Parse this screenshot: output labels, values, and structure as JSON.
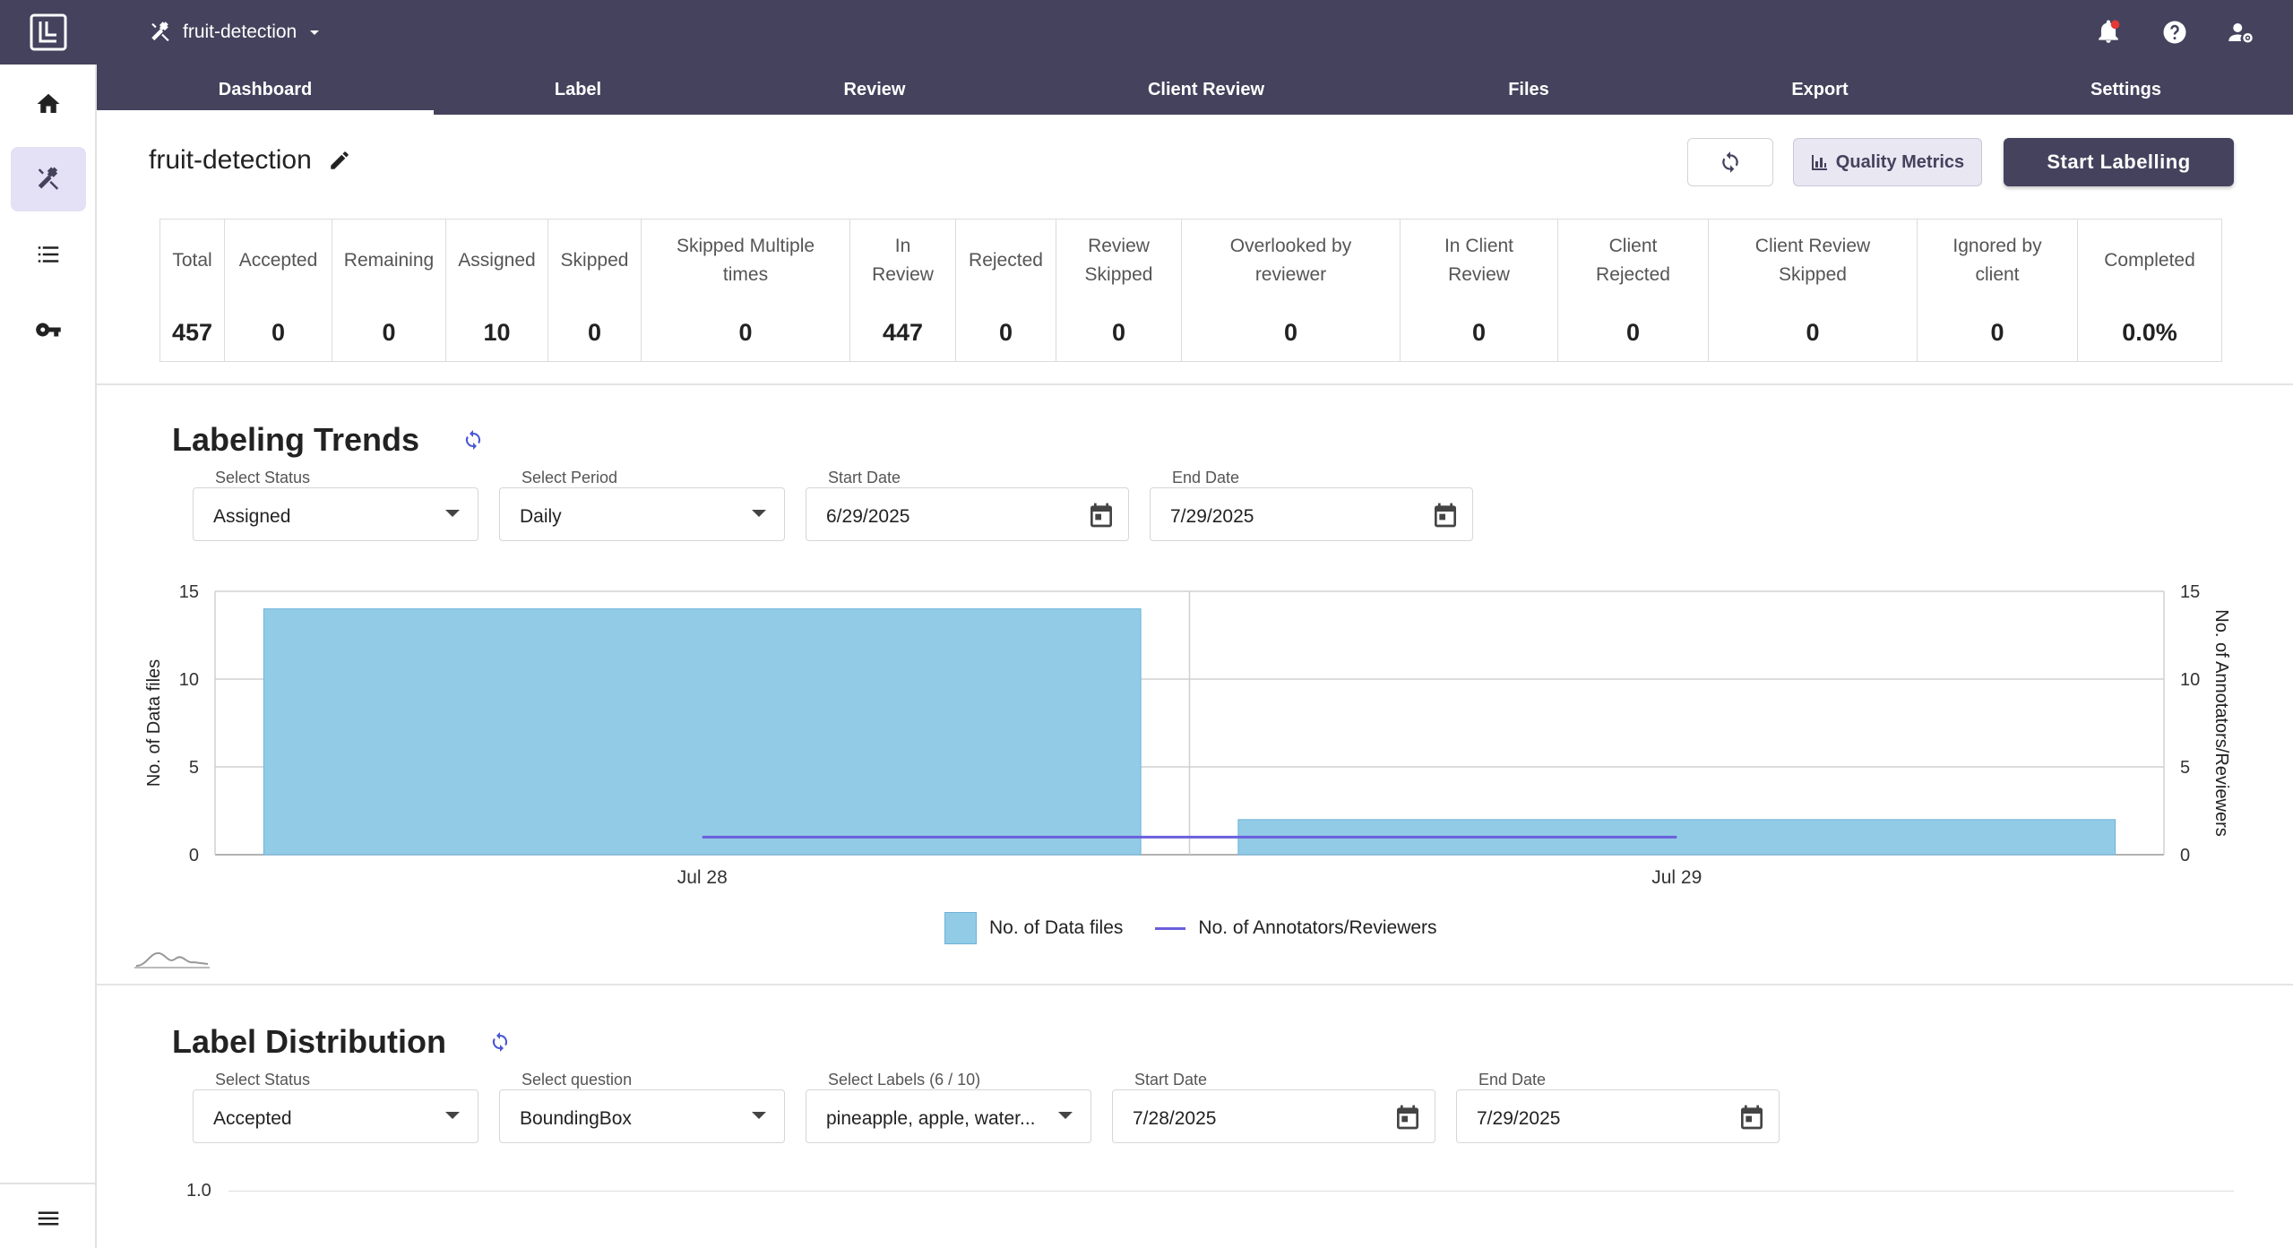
{
  "app": {
    "project_name": "fruit-detection"
  },
  "tabs": [
    {
      "label": "Dashboard",
      "active": true
    },
    {
      "label": "Label"
    },
    {
      "label": "Review"
    },
    {
      "label": "Client Review"
    },
    {
      "label": "Files"
    },
    {
      "label": "Export"
    },
    {
      "label": "Settings"
    }
  ],
  "header": {
    "title": "fruit-detection",
    "quality_label": "Quality Metrics",
    "start_label": "Start Labelling"
  },
  "stats": [
    {
      "label": "Total",
      "value": "457"
    },
    {
      "label": "Accepted",
      "value": "0"
    },
    {
      "label": "Remaining",
      "value": "0"
    },
    {
      "label": "Assigned",
      "value": "10"
    },
    {
      "label": "Skipped",
      "value": "0"
    },
    {
      "label": "Skipped Multiple times",
      "value": "0"
    },
    {
      "label": "In Review",
      "value": "447"
    },
    {
      "label": "Rejected",
      "value": "0"
    },
    {
      "label": "Review Skipped",
      "value": "0"
    },
    {
      "label": "Overlooked by reviewer",
      "value": "0"
    },
    {
      "label": "In Client Review",
      "value": "0"
    },
    {
      "label": "Client Rejected",
      "value": "0"
    },
    {
      "label": "Client Review Skipped",
      "value": "0"
    },
    {
      "label": "Ignored by client",
      "value": "0"
    },
    {
      "label": "Completed",
      "value": "0.0%"
    }
  ],
  "trends": {
    "title": "Labeling Trends",
    "status": {
      "label": "Select Status",
      "value": "Assigned"
    },
    "period": {
      "label": "Select Period",
      "value": "Daily"
    },
    "start": {
      "label": "Start Date",
      "value": "6/29/2025"
    },
    "end": {
      "label": "End Date",
      "value": "7/29/2025"
    },
    "legend": {
      "bars": "No. of Data files",
      "line": "No. of Annotators/Reviewers"
    }
  },
  "distribution": {
    "title": "Label Distribution",
    "status": {
      "label": "Select Status",
      "value": "Accepted"
    },
    "question": {
      "label": "Select question",
      "value": "BoundingBox"
    },
    "labels": {
      "label": "Select Labels (6 / 10)",
      "value": "pineapple, apple, water..."
    },
    "start": {
      "label": "Start Date",
      "value": "7/28/2025"
    },
    "end": {
      "label": "End Date",
      "value": "7/29/2025"
    },
    "y_tick": "1.0"
  },
  "colors": {
    "brand": "#45425d",
    "bar": "#92cbe6",
    "line": "#6a5fdc"
  },
  "chart_data": {
    "type": "bar",
    "categories": [
      "Jul 28",
      "Jul 29"
    ],
    "series": [
      {
        "name": "No. of Data files",
        "type": "bar",
        "axis": "left",
        "values": [
          14,
          2
        ]
      },
      {
        "name": "No. of Annotators/Reviewers",
        "type": "line",
        "axis": "right",
        "values": [
          1,
          1
        ]
      }
    ],
    "ylabel": "No. of Data files",
    "y2label": "No. of Annotators/Reviewers",
    "ylim": [
      0,
      15
    ],
    "y2lim": [
      0,
      15
    ],
    "yticks": [
      0,
      5,
      10,
      15
    ],
    "legend": "bottom"
  }
}
